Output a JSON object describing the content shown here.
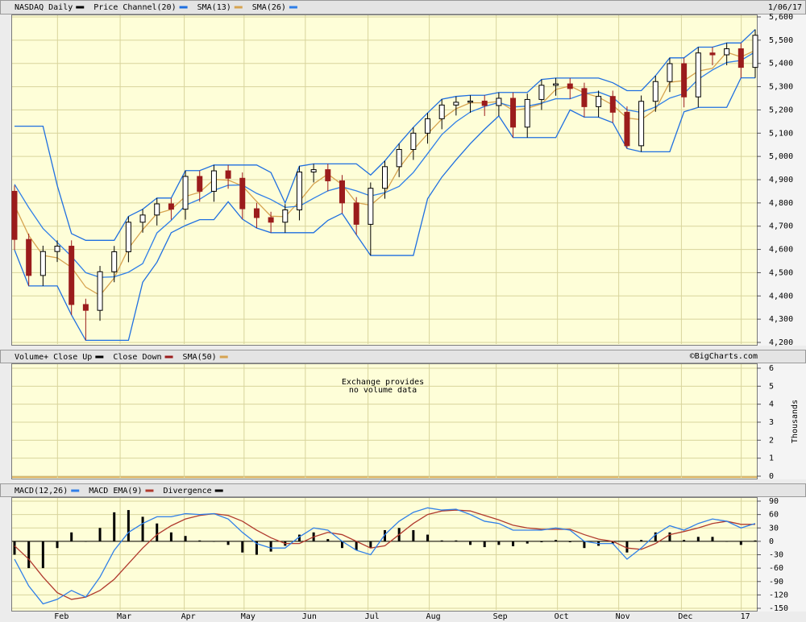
{
  "chart_data": [
    {
      "type": "candlestick",
      "title": "NASDAQ Daily",
      "color": "#000000",
      "date": "1/06/17",
      "credit": "©BigCharts.com",
      "up_color": "#ffffff",
      "down_color": "#9b1c1c",
      "open": [
        4850,
        4643,
        4488,
        4591,
        4614,
        4363,
        4338,
        4504,
        4590,
        4717,
        4748,
        4796,
        4773,
        4914,
        4850,
        4938,
        4906,
        4775,
        4737,
        4717,
        4770,
        4933,
        4943,
        4895,
        4800,
        4708,
        4863,
        4956,
        5030,
        5100,
        5162,
        5221,
        5233,
        5238,
        5219,
        5250,
        5126,
        5245,
        5306,
        5312,
        5292,
        5214,
        5258,
        5190,
        5046,
        5237,
        5322,
        5399,
        5256,
        5445,
        5437,
        5463,
        5383
      ],
      "high": [
        4875,
        4668,
        4616,
        4639,
        4639,
        4388,
        4529,
        4615,
        4742,
        4773,
        4821,
        4821,
        4939,
        4939,
        4963,
        4963,
        4931,
        4800,
        4762,
        4795,
        4958,
        4968,
        4968,
        4920,
        4825,
        4888,
        4981,
        5055,
        5125,
        5187,
        5246,
        5258,
        5263,
        5263,
        5275,
        5275,
        5270,
        5331,
        5337,
        5337,
        5317,
        5283,
        5283,
        5215,
        5262,
        5347,
        5424,
        5424,
        5470,
        5470,
        5488,
        5488,
        5546
      ],
      "low": [
        4598,
        4443,
        4443,
        4546,
        4318,
        4209,
        4293,
        4459,
        4545,
        4672,
        4703,
        4728,
        4728,
        4805,
        4805,
        4861,
        4730,
        4692,
        4672,
        4672,
        4725,
        4888,
        4850,
        4755,
        4663,
        4574,
        4818,
        4911,
        4985,
        5055,
        5117,
        5176,
        5188,
        5174,
        5174,
        5081,
        5081,
        5200,
        5261,
        5247,
        5169,
        5169,
        5145,
        5034,
        5020,
        5192,
        5277,
        5211,
        5211,
        5392,
        5392,
        5338,
        5338
      ],
      "close": [
        4643,
        4488,
        4591,
        4614,
        4363,
        4338,
        4504,
        4590,
        4717,
        4748,
        4796,
        4773,
        4914,
        4850,
        4938,
        4906,
        4775,
        4737,
        4717,
        4770,
        4933,
        4943,
        4895,
        4800,
        4708,
        4863,
        4956,
        5030,
        5100,
        5162,
        5221,
        5233,
        5238,
        5219,
        5250,
        5126,
        5245,
        5306,
        5312,
        5292,
        5214,
        5258,
        5190,
        5046,
        5237,
        5322,
        5399,
        5256,
        5445,
        5437,
        5463,
        5383,
        5521
      ],
      "series": [
        {
          "name": "Price Channel(20)",
          "color": "#1f6fe0",
          "upper": [
            5130,
            5130,
            5130,
            4875,
            4668,
            4639,
            4639,
            4639,
            4742,
            4773,
            4821,
            4821,
            4939,
            4939,
            4963,
            4963,
            4963,
            4963,
            4931,
            4800,
            4958,
            4968,
            4968,
            4968,
            4968,
            4920,
            4981,
            5055,
            5125,
            5187,
            5246,
            5258,
            5263,
            5263,
            5275,
            5275,
            5275,
            5331,
            5337,
            5337,
            5337,
            5337,
            5317,
            5283,
            5283,
            5347,
            5424,
            5424,
            5470,
            5470,
            5488,
            5488,
            5546
          ],
          "lower": [
            4598,
            4443,
            4443,
            4443,
            4318,
            4209,
            4209,
            4209,
            4209,
            4459,
            4545,
            4672,
            4703,
            4728,
            4728,
            4805,
            4730,
            4692,
            4672,
            4672,
            4672,
            4672,
            4725,
            4755,
            4663,
            4574,
            4574,
            4574,
            4574,
            4818,
            4911,
            4985,
            5055,
            5117,
            5174,
            5081,
            5081,
            5081,
            5081,
            5200,
            5169,
            5169,
            5145,
            5034,
            5020,
            5020,
            5020,
            5192,
            5211,
            5211,
            5211,
            5338,
            5338
          ]
        },
        {
          "name": "SMA(13)",
          "color": "#d6a350",
          "values": [
            4790,
            4660,
            4574,
            4564,
            4523,
            4438,
            4402,
            4477,
            4604,
            4685,
            4754,
            4772,
            4828,
            4846,
            4901,
            4898,
            4873,
            4806,
            4743,
            4741,
            4807,
            4882,
            4924,
            4879,
            4801,
            4790,
            4842,
            4950,
            5029,
            5097,
            5161,
            5205,
            5231,
            5230,
            5236,
            5198,
            5207,
            5226,
            5288,
            5303,
            5273,
            5255,
            5221,
            5165,
            5158,
            5202,
            5319,
            5326,
            5367,
            5379,
            5448,
            5428,
            5456
          ]
        },
        {
          "name": "SMA(26)",
          "color": "#2f7fe8",
          "values": [
            4880,
            4780,
            4690,
            4630,
            4570,
            4500,
            4480,
            4482,
            4502,
            4539,
            4671,
            4725,
            4790,
            4816,
            4854,
            4876,
            4877,
            4841,
            4815,
            4781,
            4786,
            4820,
            4852,
            4869,
            4852,
            4830,
            4844,
            4871,
            4931,
            5012,
            5094,
            5149,
            5191,
            5215,
            5232,
            5213,
            5216,
            5229,
            5248,
            5248,
            5270,
            5277,
            5254,
            5200,
            5189,
            5213,
            5251,
            5270,
            5332,
            5372,
            5404,
            5413,
            5450
          ]
        }
      ],
      "xlim": [
        0,
        52
      ],
      "xticks": [
        {
          "value": 3.3,
          "label": "Feb"
        },
        {
          "value": 7.7,
          "label": "Mar"
        },
        {
          "value": 12.2,
          "label": "Apr"
        },
        {
          "value": 16.4,
          "label": "May"
        },
        {
          "value": 20.7,
          "label": "Jun"
        },
        {
          "value": 25.1,
          "label": "Jul"
        },
        {
          "value": 29.4,
          "label": "Aug"
        },
        {
          "value": 34.1,
          "label": "Sep"
        },
        {
          "value": 38.4,
          "label": "Oct"
        },
        {
          "value": 42.7,
          "label": "Nov"
        },
        {
          "value": 47.1,
          "label": "Dec"
        },
        {
          "value": 51.3,
          "label": "17"
        }
      ],
      "ylim": [
        4200,
        5600
      ],
      "yticks": [
        {
          "value": 4200,
          "label": "4,200"
        },
        {
          "value": 4300,
          "label": "4,300"
        },
        {
          "value": 4400,
          "label": "4,400"
        },
        {
          "value": 4500,
          "label": "4,500"
        },
        {
          "value": 4600,
          "label": "4,600"
        },
        {
          "value": 4700,
          "label": "4,700"
        },
        {
          "value": 4800,
          "label": "4,800"
        },
        {
          "value": 4900,
          "label": "4,900"
        },
        {
          "value": 5000,
          "label": "5,000"
        },
        {
          "value": 5100,
          "label": "5,100"
        },
        {
          "value": 5200,
          "label": "5,200"
        },
        {
          "value": 5300,
          "label": "5,300"
        },
        {
          "value": 5400,
          "label": "5,400"
        },
        {
          "value": 5500,
          "label": "5,500"
        },
        {
          "value": 5600,
          "label": "5,600"
        }
      ],
      "grid": true
    },
    {
      "type": "volume",
      "ylabel": "Thousands",
      "annotations": [
        "Exchange provides",
        "no volume data"
      ],
      "series": [
        {
          "name": "Volume+ Close Up",
          "color": "#000000"
        },
        {
          "name": "Close Down",
          "color": "#9b1c1c"
        },
        {
          "name": "SMA(50)",
          "color": "#d6a350"
        }
      ],
      "ylim": [
        0,
        6
      ],
      "yticks": [
        0,
        1,
        2,
        3,
        4,
        5,
        6
      ],
      "grid": true
    },
    {
      "type": "macd",
      "series": [
        {
          "name": "MACD(12,26)",
          "color": "#2f7fe8",
          "values": [
            -40,
            -100,
            -140,
            -130,
            -110,
            -125,
            -80,
            -20,
            20,
            40,
            55,
            55,
            62,
            60,
            62,
            50,
            20,
            -5,
            -15,
            -15,
            10,
            30,
            25,
            0,
            -20,
            -30,
            15,
            45,
            65,
            75,
            70,
            72,
            60,
            45,
            40,
            25,
            25,
            25,
            30,
            25,
            0,
            -5,
            -5,
            -40,
            -15,
            15,
            35,
            25,
            40,
            50,
            45,
            30,
            40
          ]
        },
        {
          "name": "MACD EMA(9)",
          "color": "#b03a2e",
          "values": [
            -10,
            -40,
            -80,
            -115,
            -130,
            -125,
            -110,
            -85,
            -50,
            -15,
            15,
            35,
            50,
            58,
            62,
            58,
            45,
            25,
            8,
            -5,
            -5,
            10,
            20,
            15,
            0,
            -15,
            -10,
            15,
            40,
            60,
            68,
            70,
            68,
            58,
            48,
            36,
            30,
            27,
            27,
            27,
            15,
            5,
            0,
            -15,
            -18,
            -5,
            15,
            22,
            30,
            40,
            45,
            38,
            38
          ]
        },
        {
          "name": "Divergence",
          "color": "#000000",
          "values": [
            -30,
            -60,
            -60,
            -15,
            20,
            0,
            30,
            65,
            70,
            55,
            40,
            20,
            12,
            2,
            0,
            -8,
            -25,
            -30,
            -23,
            -10,
            15,
            20,
            5,
            -15,
            -20,
            -15,
            25,
            30,
            25,
            15,
            2,
            2,
            -8,
            -13,
            -8,
            -11,
            -5,
            -2,
            3,
            -2,
            -15,
            -10,
            -5,
            -25,
            3,
            20,
            20,
            3,
            10,
            10,
            0,
            -8,
            2
          ]
        }
      ],
      "ylim": [
        -150,
        90
      ],
      "yticks": [
        90,
        60,
        30,
        0,
        -30,
        -60,
        -90,
        -120,
        -150
      ],
      "grid": true
    }
  ]
}
